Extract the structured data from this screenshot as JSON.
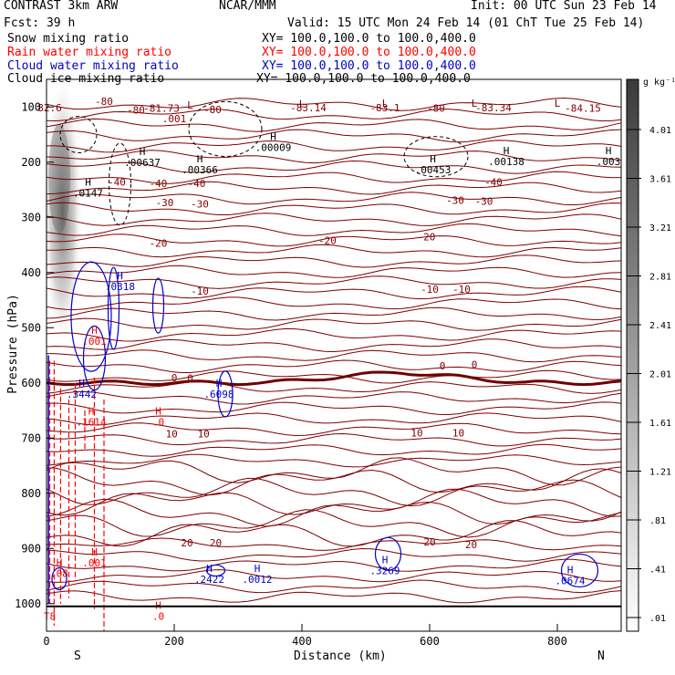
{
  "header": {
    "title": "CONTRAST  3km ARW",
    "forecast": "Fcst:   39 h",
    "org": "NCAR/MMM",
    "init": "Init: 00 UTC Sun 23 Feb 14",
    "valid": "Valid: 15 UTC Mon 24 Feb 14 (01 ChT Tue 25 Feb 14)"
  },
  "fields": [
    {
      "name": "Snow mixing ratio",
      "xy": "XY= 100.0,100.0 to 100.0,400.0",
      "color": "#000000"
    },
    {
      "name": "Rain water mixing ratio",
      "xy": "XY= 100.0,100.0 to 100.0,400.0",
      "color": "#ff0000"
    },
    {
      "name": "Cloud water mixing ratio",
      "xy": "XY= 100.0,100.0 to 100.0,400.0",
      "color": "#0000cc"
    },
    {
      "name": "Cloud ice mixing ratio",
      "xy": "XY= 100.0,100.0 to 100.0,400.0",
      "color": "#000000"
    }
  ],
  "colorbar": {
    "unit": "g kg⁻¹",
    "ticks": [
      "4.01",
      "3.61",
      "3.21",
      "2.81",
      "2.41",
      "2.01",
      "1.61",
      "1.21",
      ".81",
      ".41",
      ".01"
    ]
  },
  "colors": {
    "temperature": "#800000",
    "rain": "#ff0000",
    "cloud_water": "#0000cc",
    "freezing": "#700000",
    "ground": "#000000"
  },
  "chart_data": {
    "type": "contour",
    "xlabel": "Distance (km)",
    "ylabel": "Pressure (hPa)",
    "xlim": [
      0,
      900
    ],
    "ylim": [
      1050,
      50
    ],
    "x_ticks": [
      0,
      200,
      400,
      600,
      800
    ],
    "y_ticks": [
      100,
      200,
      300,
      400,
      500,
      600,
      700,
      800,
      900,
      1000
    ],
    "x_end_labels": {
      "left": "S",
      "right": "N"
    },
    "temperature_contour_labels": [
      {
        "x": 90,
        "p": 91,
        "text": "-80"
      },
      {
        "x": 140,
        "p": 107,
        "text": "-80"
      },
      {
        "x": 180,
        "p": 104,
        "text": "-81.73"
      },
      {
        "x": 260,
        "p": 106,
        "text": "-80"
      },
      {
        "x": 410,
        "p": 103,
        "text": "-83.14"
      },
      {
        "x": 530,
        "p": 103,
        "text": "-83.1"
      },
      {
        "x": 610,
        "p": 104,
        "text": "-80"
      },
      {
        "x": 700,
        "p": 103,
        "text": "-83.34"
      },
      {
        "x": 840,
        "p": 104,
        "text": "-84.15"
      },
      {
        "x": 5,
        "p": 103,
        "text": "82.6"
      },
      {
        "x": 200,
        "p": 123,
        "text": ".001"
      },
      {
        "x": 110,
        "p": 238,
        "text": "-40"
      },
      {
        "x": 175,
        "p": 240,
        "text": "-40"
      },
      {
        "x": 235,
        "p": 240,
        "text": "-40"
      },
      {
        "x": 700,
        "p": 238,
        "text": "-40"
      },
      {
        "x": 185,
        "p": 275,
        "text": "-30"
      },
      {
        "x": 240,
        "p": 277,
        "text": "-30"
      },
      {
        "x": 640,
        "p": 271,
        "text": "-30"
      },
      {
        "x": 685,
        "p": 272,
        "text": "-30"
      },
      {
        "x": 175,
        "p": 348,
        "text": "-20"
      },
      {
        "x": 440,
        "p": 343,
        "text": "-20"
      },
      {
        "x": 595,
        "p": 337,
        "text": "-20"
      },
      {
        "x": 240,
        "p": 435,
        "text": "-10"
      },
      {
        "x": 600,
        "p": 432,
        "text": "-10"
      },
      {
        "x": 650,
        "p": 432,
        "text": "-10"
      },
      {
        "x": 200,
        "p": 592,
        "text": "0"
      },
      {
        "x": 225,
        "p": 593,
        "text": "0"
      },
      {
        "x": 620,
        "p": 571,
        "text": "0"
      },
      {
        "x": 670,
        "p": 568,
        "text": "0"
      },
      {
        "x": 196,
        "p": 694,
        "text": "10"
      },
      {
        "x": 246,
        "p": 694,
        "text": "10"
      },
      {
        "x": 580,
        "p": 692,
        "text": "10"
      },
      {
        "x": 645,
        "p": 692,
        "text": "10"
      },
      {
        "x": 220,
        "p": 891,
        "text": "20"
      },
      {
        "x": 265,
        "p": 891,
        "text": "20"
      },
      {
        "x": 600,
        "p": 890,
        "text": "20"
      },
      {
        "x": 665,
        "p": 895,
        "text": "20"
      }
    ],
    "annotations": [
      {
        "x": 225,
        "p": 116,
        "mark": "L",
        "value": ""
      },
      {
        "x": 400,
        "p": 114,
        "mark": "L",
        "value": ""
      },
      {
        "x": 530,
        "p": 113,
        "mark": "L",
        "value": ""
      },
      {
        "x": 670,
        "p": 113,
        "mark": "L",
        "value": ""
      },
      {
        "x": 800,
        "p": 113,
        "mark": "L",
        "value": ""
      },
      {
        "x": 355,
        "p": 173,
        "mark": "H",
        "value": ".00009"
      },
      {
        "x": 150,
        "p": 200,
        "mark": "H",
        "value": ".00637"
      },
      {
        "x": 240,
        "p": 214,
        "mark": "H",
        "value": ".00366"
      },
      {
        "x": 605,
        "p": 214,
        "mark": "H",
        "value": ".00453"
      },
      {
        "x": 720,
        "p": 199,
        "mark": "H",
        "value": ".00138"
      },
      {
        "x": 880,
        "p": 199,
        "mark": "H",
        "value": ".003"
      },
      {
        "x": 65,
        "p": 256,
        "mark": "H",
        "value": ".0147"
      },
      {
        "x": 115,
        "p": 425,
        "mark": "H",
        "value": ".0318"
      },
      {
        "x": 75,
        "p": 524,
        "mark": "H",
        "value": ".001"
      },
      {
        "x": 55,
        "p": 620,
        "mark": "H",
        "value": ".3442"
      },
      {
        "x": 270,
        "p": 620,
        "mark": "H",
        "value": ".6098"
      },
      {
        "x": 70,
        "p": 671,
        "mark": "H",
        "value": ".1614"
      },
      {
        "x": 175,
        "p": 671,
        "mark": "H",
        "value": ".0"
      },
      {
        "x": 75,
        "p": 926,
        "mark": "H",
        "value": ".001"
      },
      {
        "x": 20,
        "p": 945,
        "mark": "H",
        "value": ".08"
      },
      {
        "x": 255,
        "p": 956,
        "mark": "H",
        "value": ".2422"
      },
      {
        "x": 330,
        "p": 956,
        "mark": "H",
        "value": ".0012"
      },
      {
        "x": 530,
        "p": 940,
        "mark": "H",
        "value": ".3269"
      },
      {
        "x": 820,
        "p": 958,
        "mark": "H",
        "value": ".0674"
      },
      {
        "x": 175,
        "p": 1023,
        "mark": "H",
        "value": ".0"
      },
      {
        "x": 5,
        "p": 1023,
        "mark": "",
        "value": "T8"
      }
    ]
  }
}
